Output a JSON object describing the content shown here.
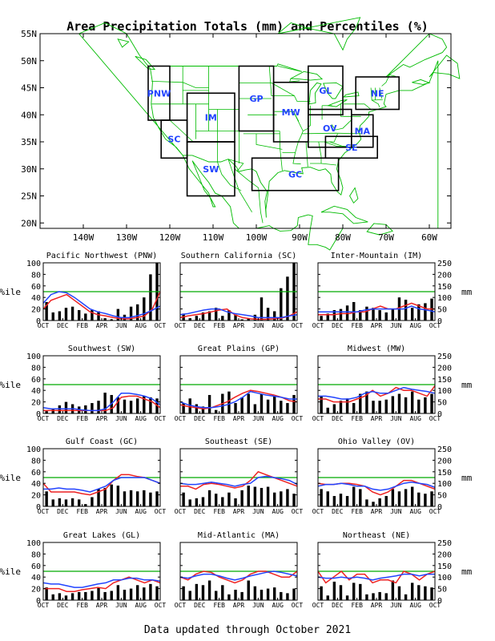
{
  "title": "Area Precipitation Totals (mm) and Percentiles (%)",
  "footer": "Data updated through October 2021",
  "colors": {
    "land": "#00bb00",
    "region_box": "#000000",
    "region_label": "#2244ff",
    "bars": "#000000",
    "percentile_line": "#2244ff",
    "normal_line": "#ee2222",
    "fifty_line": "#00aa00"
  },
  "map": {
    "lat_ticks": [
      "55N",
      "50N",
      "45N",
      "40N",
      "35N",
      "30N",
      "25N",
      "20N"
    ],
    "lon_ticks": [
      "140W",
      "130W",
      "120W",
      "110W",
      "100W",
      "90W",
      "80W",
      "70W",
      "60W"
    ],
    "lon_range": [
      -150,
      -55
    ],
    "lat_range": [
      19,
      55
    ],
    "regions": [
      {
        "label": "PNW",
        "lon": [
          -125,
          -120
        ],
        "lat": [
          39,
          49
        ]
      },
      {
        "label": "SC",
        "lon": [
          -122,
          -116
        ],
        "lat": [
          32,
          39
        ]
      },
      {
        "label": "IM",
        "lon": [
          -116,
          -105
        ],
        "lat": [
          35,
          44
        ]
      },
      {
        "label": "SW",
        "lon": [
          -116,
          -105
        ],
        "lat": [
          25,
          35
        ]
      },
      {
        "label": "GP",
        "lon": [
          -104,
          -96
        ],
        "lat": [
          37,
          49
        ]
      },
      {
        "label": "MW",
        "lon": [
          -96,
          -88
        ],
        "lat": [
          35,
          46
        ]
      },
      {
        "label": "GL",
        "lon": [
          -88,
          -80
        ],
        "lat": [
          40,
          49
        ]
      },
      {
        "label": "NE",
        "lon": [
          -77,
          -67
        ],
        "lat": [
          41,
          47
        ]
      },
      {
        "label": "OV",
        "lon": [
          -88,
          -78
        ],
        "lat": [
          34,
          41
        ]
      },
      {
        "label": "MA",
        "lon": [
          -78,
          -73
        ],
        "lat": [
          34,
          40
        ]
      },
      {
        "label": "SE",
        "lon": [
          -84,
          -72
        ],
        "lat": [
          32,
          36
        ]
      },
      {
        "label": "GC",
        "lon": [
          -101,
          -81
        ],
        "lat": [
          26,
          32
        ]
      }
    ]
  },
  "chart_data": {
    "type": "bar",
    "x_ticks": [
      "OCT",
      "DEC",
      "FEB",
      "APR",
      "JUN",
      "AUG",
      "OCT"
    ],
    "left_axis": {
      "label": "%ile",
      "range": [
        0,
        100
      ],
      "ticks": [
        "0",
        "20",
        "40",
        "60",
        "80",
        "100"
      ]
    },
    "right_axis": {
      "label": "mm",
      "range": [
        0,
        250
      ],
      "ticks": [
        "0",
        "50",
        "100",
        "150",
        "200",
        "250"
      ]
    },
    "reference_line": 50,
    "panels": [
      {
        "title": "Pacific Northwest (PNW)",
        "bars": [
          80,
          35,
          40,
          55,
          60,
          45,
          30,
          45,
          40,
          10,
          5,
          50,
          25,
          60,
          70,
          100,
          200,
          250
        ],
        "percentile": [
          30,
          45,
          50,
          48,
          40,
          30,
          20,
          15,
          12,
          8,
          5,
          5,
          8,
          12,
          18,
          25
        ],
        "normal": [
          20,
          35,
          40,
          45,
          35,
          25,
          15,
          10,
          8,
          5,
          3,
          3,
          5,
          8,
          20,
          50
        ]
      },
      {
        "title": "Southern California (SC)",
        "bars": [
          30,
          10,
          20,
          35,
          40,
          55,
          20,
          45,
          25,
          5,
          10,
          25,
          100,
          55,
          40,
          140,
          190,
          250
        ],
        "percentile": [
          10,
          12,
          15,
          18,
          20,
          20,
          15,
          12,
          10,
          8,
          5,
          5,
          5,
          5,
          8,
          10
        ],
        "normal": [
          5,
          8,
          10,
          12,
          15,
          18,
          20,
          10,
          5,
          3,
          2,
          2,
          3,
          4,
          8,
          15
        ]
      },
      {
        "title": "Inter-Mountain (IM)",
        "bars": [
          20,
          30,
          45,
          50,
          65,
          80,
          45,
          60,
          55,
          45,
          35,
          50,
          100,
          90,
          55,
          70,
          75,
          95
        ],
        "percentile": [
          15,
          15,
          15,
          15,
          15,
          15,
          18,
          20,
          20,
          20,
          20,
          20,
          25,
          20,
          18,
          15
        ],
        "normal": [
          10,
          10,
          10,
          12,
          12,
          15,
          15,
          20,
          25,
          20,
          20,
          25,
          30,
          25,
          20,
          20
        ]
      },
      {
        "title": "Southwest (SW)",
        "bars": [
          10,
          20,
          35,
          50,
          40,
          30,
          35,
          45,
          55,
          90,
          80,
          70,
          60,
          55,
          65,
          75,
          70,
          65
        ],
        "percentile": [
          10,
          8,
          8,
          8,
          8,
          6,
          5,
          5,
          8,
          20,
          35,
          35,
          33,
          30,
          25,
          15
        ],
        "normal": [
          5,
          5,
          5,
          5,
          5,
          5,
          5,
          5,
          5,
          10,
          28,
          30,
          30,
          25,
          20,
          10
        ]
      },
      {
        "title": "Great Plains (GP)",
        "bars": [
          45,
          65,
          40,
          30,
          80,
          15,
          85,
          95,
          45,
          70,
          85,
          40,
          85,
          60,
          75,
          55,
          45,
          80
        ],
        "percentile": [
          20,
          15,
          12,
          10,
          10,
          12,
          15,
          20,
          28,
          38,
          35,
          32,
          30,
          28,
          25,
          25
        ],
        "normal": [
          15,
          12,
          10,
          8,
          10,
          15,
          20,
          28,
          35,
          40,
          38,
          35,
          32,
          28,
          22,
          20
        ]
      },
      {
        "title": "Midwest (MW)",
        "bars": [
          75,
          25,
          40,
          55,
          65,
          45,
          85,
          95,
          55,
          55,
          60,
          75,
          85,
          70,
          95,
          60,
          70,
          85
        ],
        "percentile": [
          30,
          30,
          28,
          25,
          25,
          28,
          35,
          38,
          35,
          35,
          40,
          45,
          42,
          40,
          38,
          35
        ],
        "normal": [
          25,
          25,
          20,
          20,
          20,
          25,
          30,
          40,
          30,
          35,
          45,
          40,
          40,
          35,
          30,
          48
        ]
      },
      {
        "title": "Gulf Coast (GC)",
        "bars": [
          65,
          30,
          35,
          30,
          35,
          30,
          10,
          40,
          75,
          80,
          95,
          90,
          65,
          70,
          65,
          70,
          60,
          65
        ],
        "percentile": [
          30,
          30,
          32,
          30,
          30,
          28,
          25,
          30,
          35,
          45,
          50,
          50,
          50,
          50,
          45,
          40
        ],
        "normal": [
          40,
          25,
          25,
          25,
          25,
          22,
          20,
          25,
          30,
          45,
          55,
          55,
          52,
          50,
          45,
          40
        ]
      },
      {
        "title": "Southeast (SE)",
        "bars": [
          60,
          30,
          35,
          40,
          70,
          55,
          40,
          60,
          35,
          70,
          90,
          85,
          80,
          85,
          60,
          65,
          75,
          55
        ],
        "percentile": [
          40,
          38,
          38,
          40,
          42,
          40,
          38,
          35,
          38,
          40,
          50,
          52,
          50,
          48,
          45,
          38
        ],
        "normal": [
          35,
          35,
          30,
          38,
          40,
          38,
          35,
          32,
          35,
          45,
          60,
          55,
          50,
          45,
          40,
          35
        ]
      },
      {
        "title": "Ohio Valley (OV)",
        "bars": [
          75,
          65,
          45,
          55,
          45,
          85,
          75,
          30,
          20,
          35,
          45,
          75,
          65,
          75,
          85,
          60,
          55,
          65
        ],
        "percentile": [
          35,
          38,
          38,
          40,
          38,
          35,
          35,
          30,
          28,
          30,
          35,
          40,
          42,
          40,
          38,
          33
        ],
        "normal": [
          40,
          38,
          38,
          40,
          40,
          38,
          35,
          25,
          20,
          25,
          35,
          45,
          45,
          40,
          35,
          30
        ]
      },
      {
        "title": "Great Lakes (GL)",
        "bars": [
          55,
          25,
          30,
          20,
          30,
          35,
          35,
          40,
          55,
          35,
          40,
          65,
          45,
          50,
          65,
          55,
          70,
          60
        ],
        "percentile": [
          30,
          28,
          28,
          25,
          22,
          22,
          25,
          28,
          30,
          35,
          35,
          38,
          38,
          35,
          35,
          33
        ],
        "normal": [
          20,
          20,
          20,
          15,
          15,
          18,
          20,
          22,
          20,
          30,
          35,
          40,
          35,
          30,
          35,
          30
        ]
      },
      {
        "title": "Mid-Atlantic (MA)",
        "bars": [
          60,
          40,
          70,
          65,
          85,
          40,
          65,
          25,
          45,
          35,
          85,
          60,
          45,
          50,
          55,
          35,
          30,
          50
        ],
        "percentile": [
          40,
          38,
          42,
          45,
          45,
          42,
          38,
          35,
          38,
          42,
          45,
          48,
          50,
          48,
          45,
          42
        ],
        "normal": [
          40,
          35,
          45,
          50,
          48,
          40,
          35,
          30,
          35,
          45,
          50,
          50,
          45,
          40,
          40,
          50
        ]
      },
      {
        "title": "Northeast (NE)",
        "bars": [
          60,
          20,
          80,
          65,
          20,
          75,
          70,
          25,
          30,
          35,
          30,
          85,
          60,
          25,
          75,
          65,
          60,
          55
        ],
        "percentile": [
          40,
          38,
          38,
          40,
          38,
          40,
          38,
          35,
          38,
          40,
          42,
          45,
          45,
          42,
          45,
          45
        ],
        "normal": [
          50,
          30,
          40,
          50,
          35,
          45,
          45,
          30,
          35,
          35,
          30,
          50,
          45,
          35,
          45,
          50
        ]
      }
    ]
  }
}
